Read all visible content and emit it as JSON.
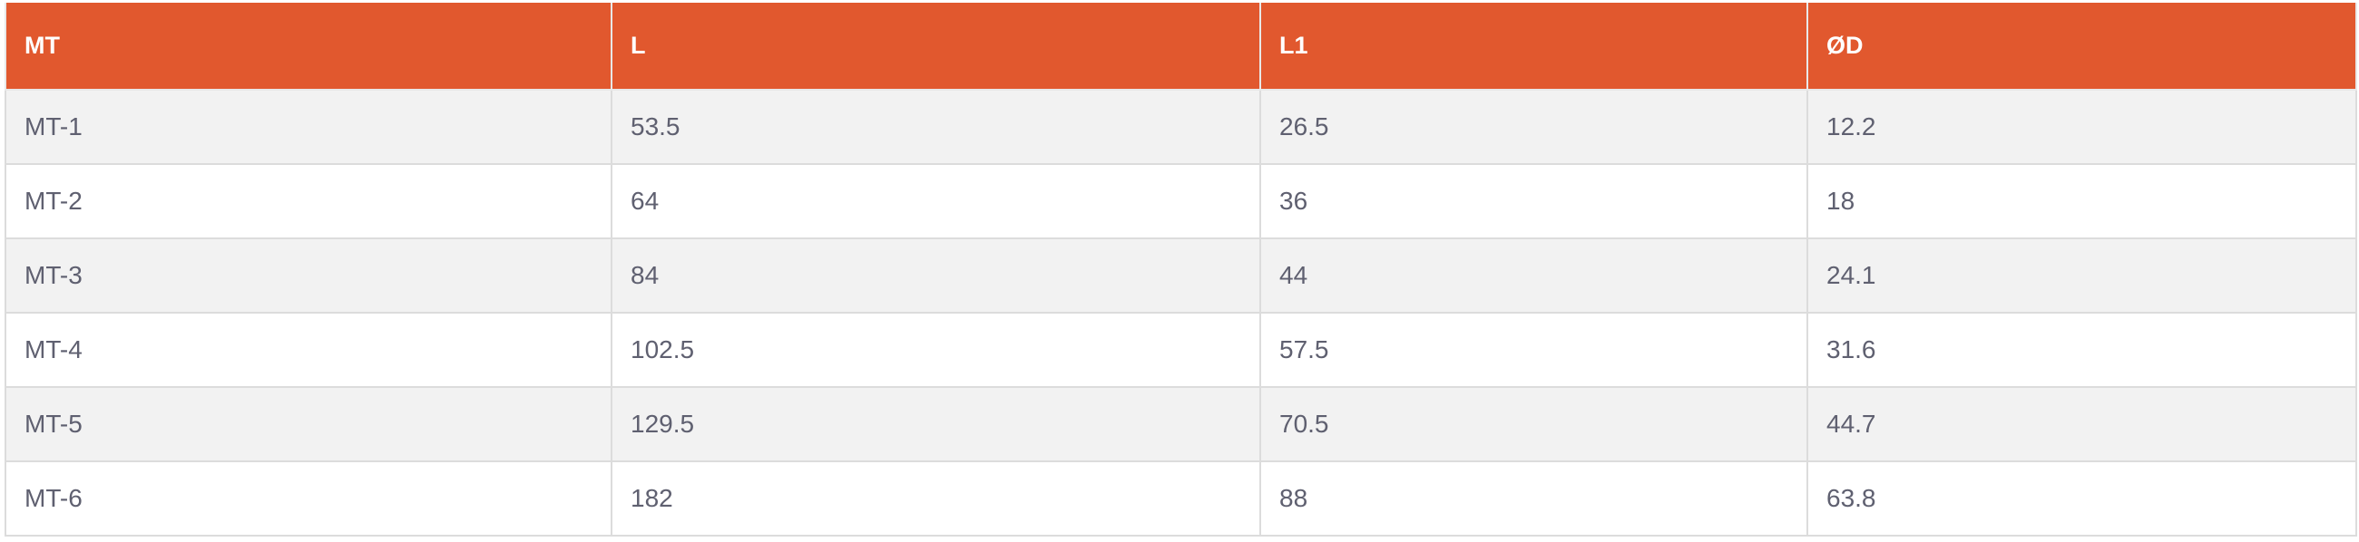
{
  "colors": {
    "header_bg": "#e1582e",
    "header_text": "#ffffff",
    "row_alt": "#f2f2f2",
    "text": "#5f6070",
    "border": "#dcdcdc"
  },
  "table": {
    "headers": [
      "MT",
      "L",
      "L1",
      "ØD"
    ],
    "rows": [
      [
        "MT-1",
        "53.5",
        "26.5",
        "12.2"
      ],
      [
        "MT-2",
        "64",
        "36",
        "18"
      ],
      [
        "MT-3",
        "84",
        "44",
        "24.1"
      ],
      [
        "MT-4",
        "102.5",
        "57.5",
        "31.6"
      ],
      [
        "MT-5",
        "129.5",
        "70.5",
        "44.7"
      ],
      [
        "MT-6",
        "182",
        "88",
        "63.8"
      ]
    ]
  }
}
